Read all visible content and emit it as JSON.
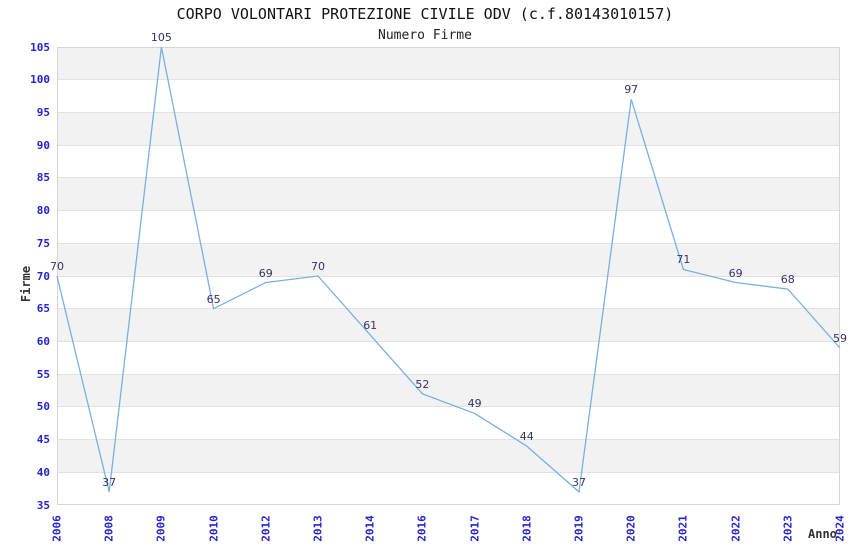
{
  "header": {
    "title": "CORPO VOLONTARI PROTEZIONE CIVILE ODV (c.f.80143010157)",
    "subtitle": "Numero Firme"
  },
  "axes": {
    "y_title": "Firme",
    "x_title": "Anno"
  },
  "chart_data": {
    "type": "line",
    "title": "CORPO VOLONTARI PROTEZIONE CIVILE ODV (c.f.80143010157)",
    "subtitle": "Numero Firme",
    "xlabel": "Anno",
    "ylabel": "Firme",
    "categories": [
      "2006",
      "2008",
      "2009",
      "2010",
      "2012",
      "2013",
      "2014",
      "2016",
      "2017",
      "2018",
      "2019",
      "2020",
      "2021",
      "2022",
      "2023",
      "2024"
    ],
    "values": [
      70,
      37,
      105,
      65,
      69,
      70,
      61,
      52,
      49,
      44,
      37,
      97,
      71,
      69,
      68,
      59
    ],
    "ylim": [
      35,
      105
    ],
    "ytick_step": 5,
    "grid": "horizontal-bands-alternating",
    "legend": "none",
    "data_labels": true,
    "x_tick_rotation": -90,
    "colors": {
      "line": "#79afe3",
      "data_label": "#333366",
      "tick_label": "#2323cf",
      "band": "#f2f2f2",
      "band_alt": "#ffffff",
      "grid_line": "#e2e2e2",
      "plot_border": "#d5d5d5",
      "axis_title": "#333333",
      "title_text": "#111111"
    }
  }
}
